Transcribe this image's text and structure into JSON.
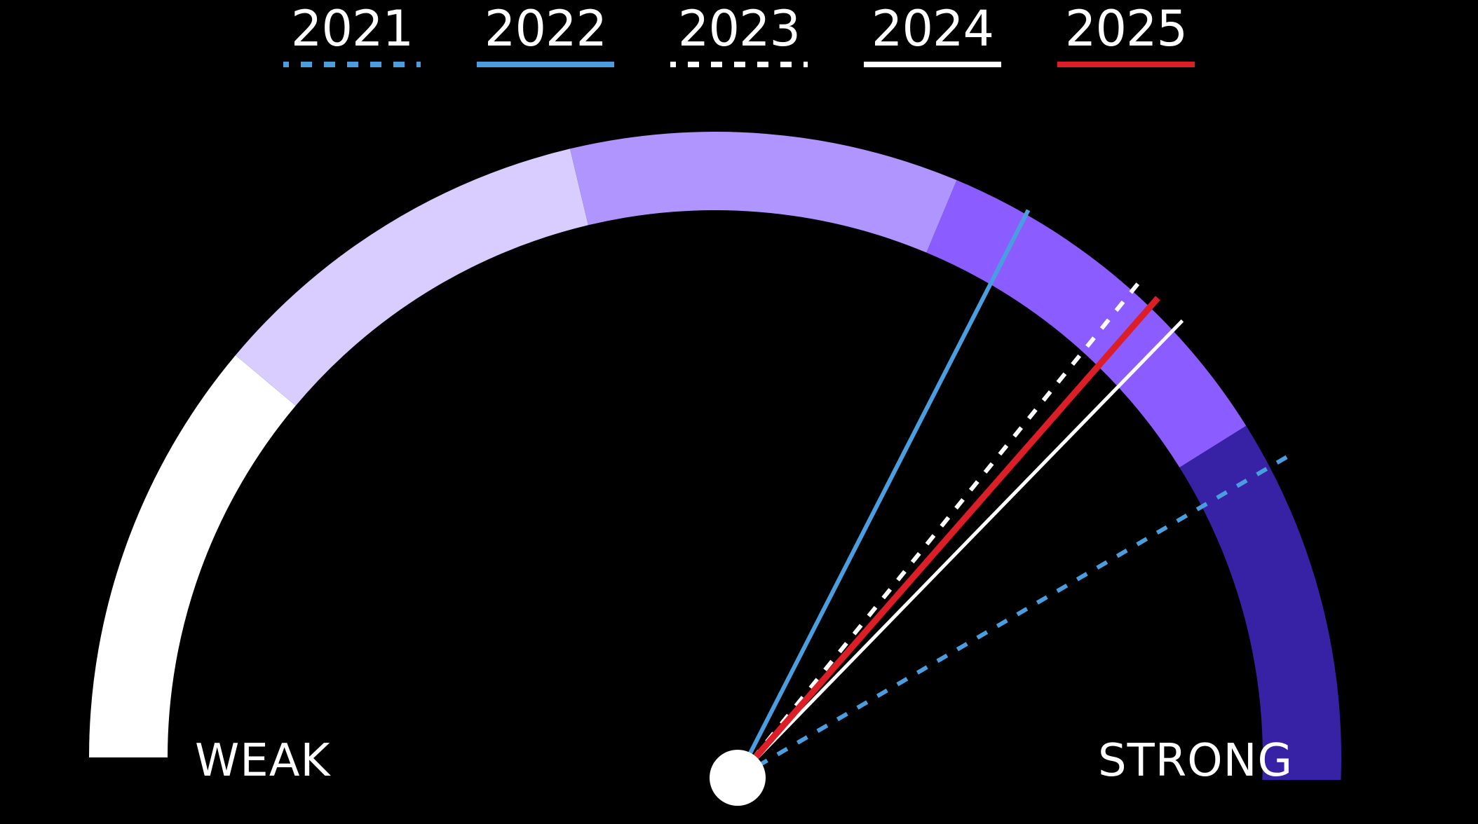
{
  "chart_data": {
    "type": "gauge",
    "title": "",
    "scale_labels": {
      "min": "WEAK",
      "max": "STRONG"
    },
    "bands": [
      {
        "name": "band-1",
        "from_deg": 180,
        "to_deg": 140,
        "color": "#ffffff"
      },
      {
        "name": "band-2",
        "from_deg": 140,
        "to_deg": 103.4,
        "color": "#d9cdff"
      },
      {
        "name": "band-3",
        "from_deg": 103.4,
        "to_deg": 67.3,
        "color": "#b094ff"
      },
      {
        "name": "band-4",
        "from_deg": 67.3,
        "to_deg": 32,
        "color": "#8b5cff"
      },
      {
        "name": "band-5",
        "from_deg": 32,
        "to_deg": -3,
        "color": "#3722a6"
      }
    ],
    "series": [
      {
        "name": "2021",
        "angle_deg": 30.3,
        "style": "dashed",
        "color": "#4a9ee0"
      },
      {
        "name": "2022",
        "angle_deg": 62.9,
        "style": "solid",
        "color": "#4a9ee0"
      },
      {
        "name": "2023",
        "angle_deg": 51.0,
        "style": "dashed",
        "color": "#ffffff"
      },
      {
        "name": "2024",
        "angle_deg": 45.8,
        "style": "solid",
        "color": "#ffffff"
      },
      {
        "name": "2025",
        "angle_deg": 48.8,
        "style": "solid",
        "color": "#dc1f26"
      }
    ],
    "legend_position": "top"
  },
  "legend": {
    "items": [
      {
        "label": "2021",
        "color": "#4a9ee0",
        "style": "dashed"
      },
      {
        "label": "2022",
        "color": "#4a9ee0",
        "style": "solid"
      },
      {
        "label": "2023",
        "color": "#ffffff",
        "style": "dashed"
      },
      {
        "label": "2024",
        "color": "#ffffff",
        "style": "solid"
      },
      {
        "label": "2025",
        "color": "#dc1f26",
        "style": "solid"
      }
    ]
  },
  "labels": {
    "weak": "WEAK",
    "strong": "STRONG"
  }
}
